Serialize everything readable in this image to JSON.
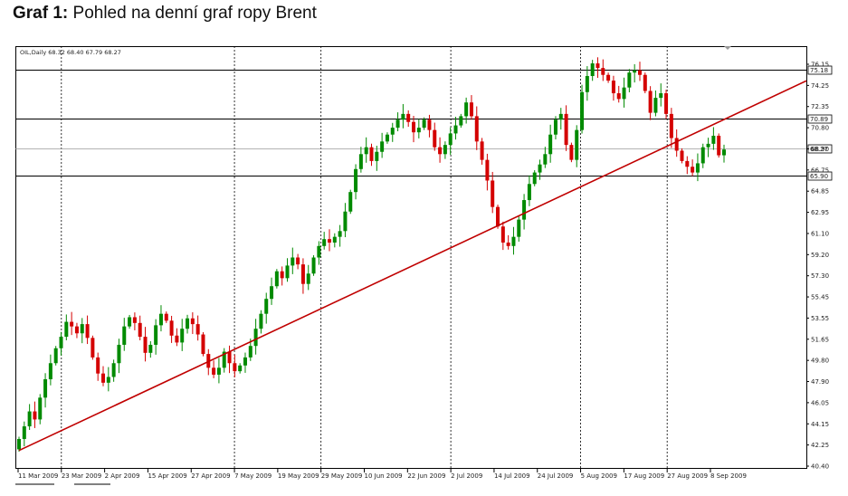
{
  "caption": {
    "label": "Graf 1:",
    "text": "Pohled na denní graf ropy Brent"
  },
  "chart_data": {
    "type": "candlestick",
    "symbol_readout": "OIL,Daily  68.32 68.40 67.79 68.27",
    "colors": {
      "up": "#008a00",
      "down": "#d40000",
      "trendline": "#c00000",
      "levels": "#000000"
    },
    "ylim": [
      40.4,
      77.2
    ],
    "y_ticks": [
      "76.15",
      "74.25",
      "72.35",
      "70.80",
      "68.90",
      "66.75",
      "64.85",
      "62.95",
      "61.10",
      "59.20",
      "57.30",
      "55.45",
      "53.55",
      "51.65",
      "49.80",
      "47.90",
      "46.05",
      "44.15",
      "42.25",
      "40.40"
    ],
    "x_ticks": [
      "11 Mar 2009",
      "23 Mar 2009",
      "2 Apr 2009",
      "15 Apr 2009",
      "27 Apr 2009",
      "7 May 2009",
      "19 May 2009",
      "29 May 2009",
      "10 Jun 2009",
      "22 Jun 2009",
      "2 Jul 2009",
      "14 Jul 2009",
      "24 Jul 2009",
      "5 Aug 2009",
      "17 Aug 2009",
      "27 Aug 2009",
      "8 Sep 2009"
    ],
    "x_gridlines": [
      "23 Mar 2009",
      "7 May 2009",
      "29 May 2009",
      "2 Jul 2009",
      "5 Aug 2009",
      "27 Aug 2009"
    ],
    "horizontal_levels": [
      {
        "value": 75.18,
        "label": "75.18"
      },
      {
        "value": 70.89,
        "label": "70.89"
      },
      {
        "value": 68.27,
        "label": "68.27",
        "style": "current"
      },
      {
        "value": 65.9,
        "label": "65.90"
      }
    ],
    "trendline": {
      "start": {
        "bar": 0,
        "value": 42.0
      },
      "end": {
        "bar": 133,
        "value": 70.6
      }
    },
    "closes": [
      43.0,
      44.1,
      45.4,
      44.7,
      46.6,
      48.2,
      49.6,
      50.9,
      51.9,
      53.2,
      52.8,
      52.2,
      53.0,
      51.8,
      50.1,
      48.7,
      47.9,
      48.4,
      49.6,
      51.2,
      52.8,
      53.6,
      53.1,
      51.9,
      50.5,
      51.2,
      52.9,
      53.9,
      53.3,
      52.0,
      51.4,
      52.6,
      53.5,
      53.0,
      52.1,
      50.4,
      49.2,
      48.6,
      49.2,
      50.6,
      49.6,
      48.9,
      49.4,
      50.1,
      51.1,
      52.6,
      53.9,
      55.2,
      56.3,
      57.6,
      57.0,
      58.1,
      58.8,
      58.2,
      56.5,
      57.4,
      58.8,
      59.8,
      60.4,
      60.1,
      60.6,
      61.1,
      62.8,
      64.5,
      66.5,
      67.8,
      68.4,
      67.2,
      68.0,
      68.9,
      69.5,
      70.1,
      70.8,
      71.3,
      70.6,
      69.7,
      70.1,
      70.8,
      69.9,
      68.4,
      67.8,
      68.6,
      69.6,
      70.3,
      71.1,
      72.3,
      71.1,
      68.9,
      67.3,
      65.5,
      63.2,
      61.5,
      60.1,
      59.8,
      60.6,
      62.1,
      63.8,
      65.2,
      66.2,
      66.9,
      67.8,
      69.5,
      70.8,
      71.3,
      68.6,
      67.3,
      69.9,
      73.2,
      74.6,
      75.7,
      75.3,
      74.7,
      74.2,
      73.1,
      72.6,
      73.6,
      74.9,
      75.1,
      74.7,
      73.3,
      71.4,
      72.7,
      73.1,
      71.3,
      69.2,
      68.1,
      67.2,
      66.7,
      66.2,
      67.0,
      68.4,
      68.7,
      69.4,
      67.7,
      68.2
    ]
  }
}
